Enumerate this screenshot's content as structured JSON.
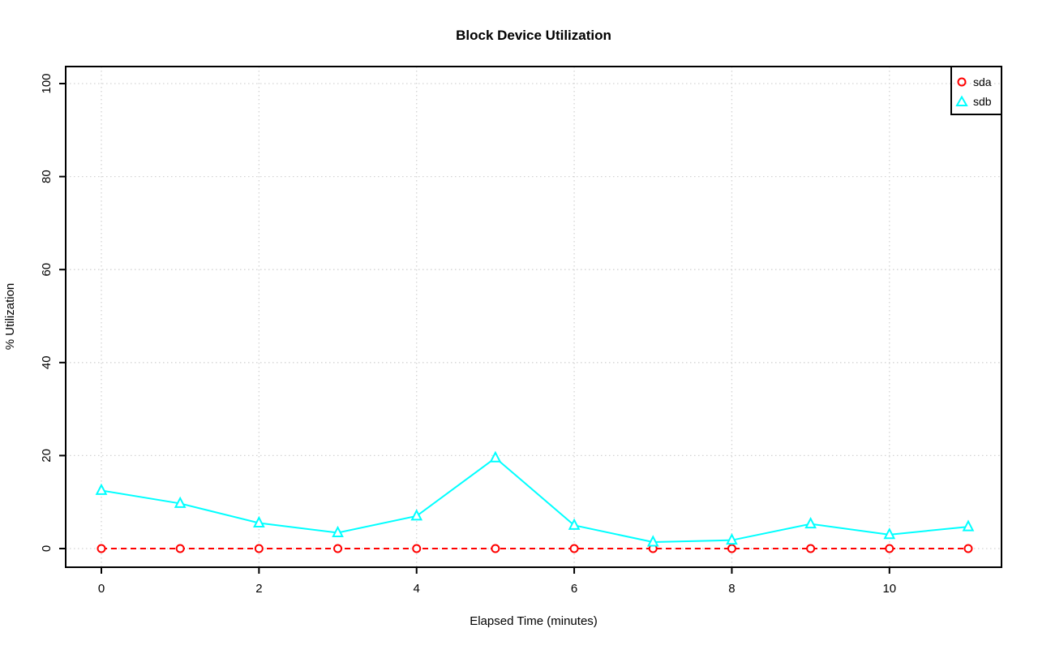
{
  "chart_data": {
    "type": "line",
    "title": "Block Device Utilization",
    "xlabel": "Elapsed Time (minutes)",
    "ylabel": "% Utilization",
    "x": [
      0,
      1,
      2,
      3,
      4,
      5,
      6,
      7,
      8,
      9,
      10,
      11
    ],
    "xlim": [
      0,
      11
    ],
    "ylim": [
      0,
      100
    ],
    "x_ticks": [
      0,
      2,
      4,
      6,
      8,
      10
    ],
    "y_ticks": [
      0,
      20,
      40,
      60,
      80,
      100
    ],
    "grid": true,
    "grid_style": "dotted",
    "legend_position": "top-right-inside",
    "series": [
      {
        "name": "sda",
        "color": "#ff0000",
        "marker": "circle",
        "line_style": "dashed",
        "values": [
          0,
          0,
          0,
          0,
          0,
          0,
          0,
          0,
          0,
          0,
          0,
          0
        ]
      },
      {
        "name": "sdb",
        "color": "#00ffff",
        "marker": "triangle",
        "line_style": "solid",
        "values": [
          12.5,
          9.7,
          5.5,
          3.4,
          7.0,
          19.5,
          5.0,
          1.4,
          1.8,
          5.3,
          3.0,
          4.7
        ]
      }
    ],
    "colors": {
      "grid": "#d3d3d3",
      "axis": "#000000",
      "text": "#000000",
      "background": "#ffffff"
    }
  }
}
